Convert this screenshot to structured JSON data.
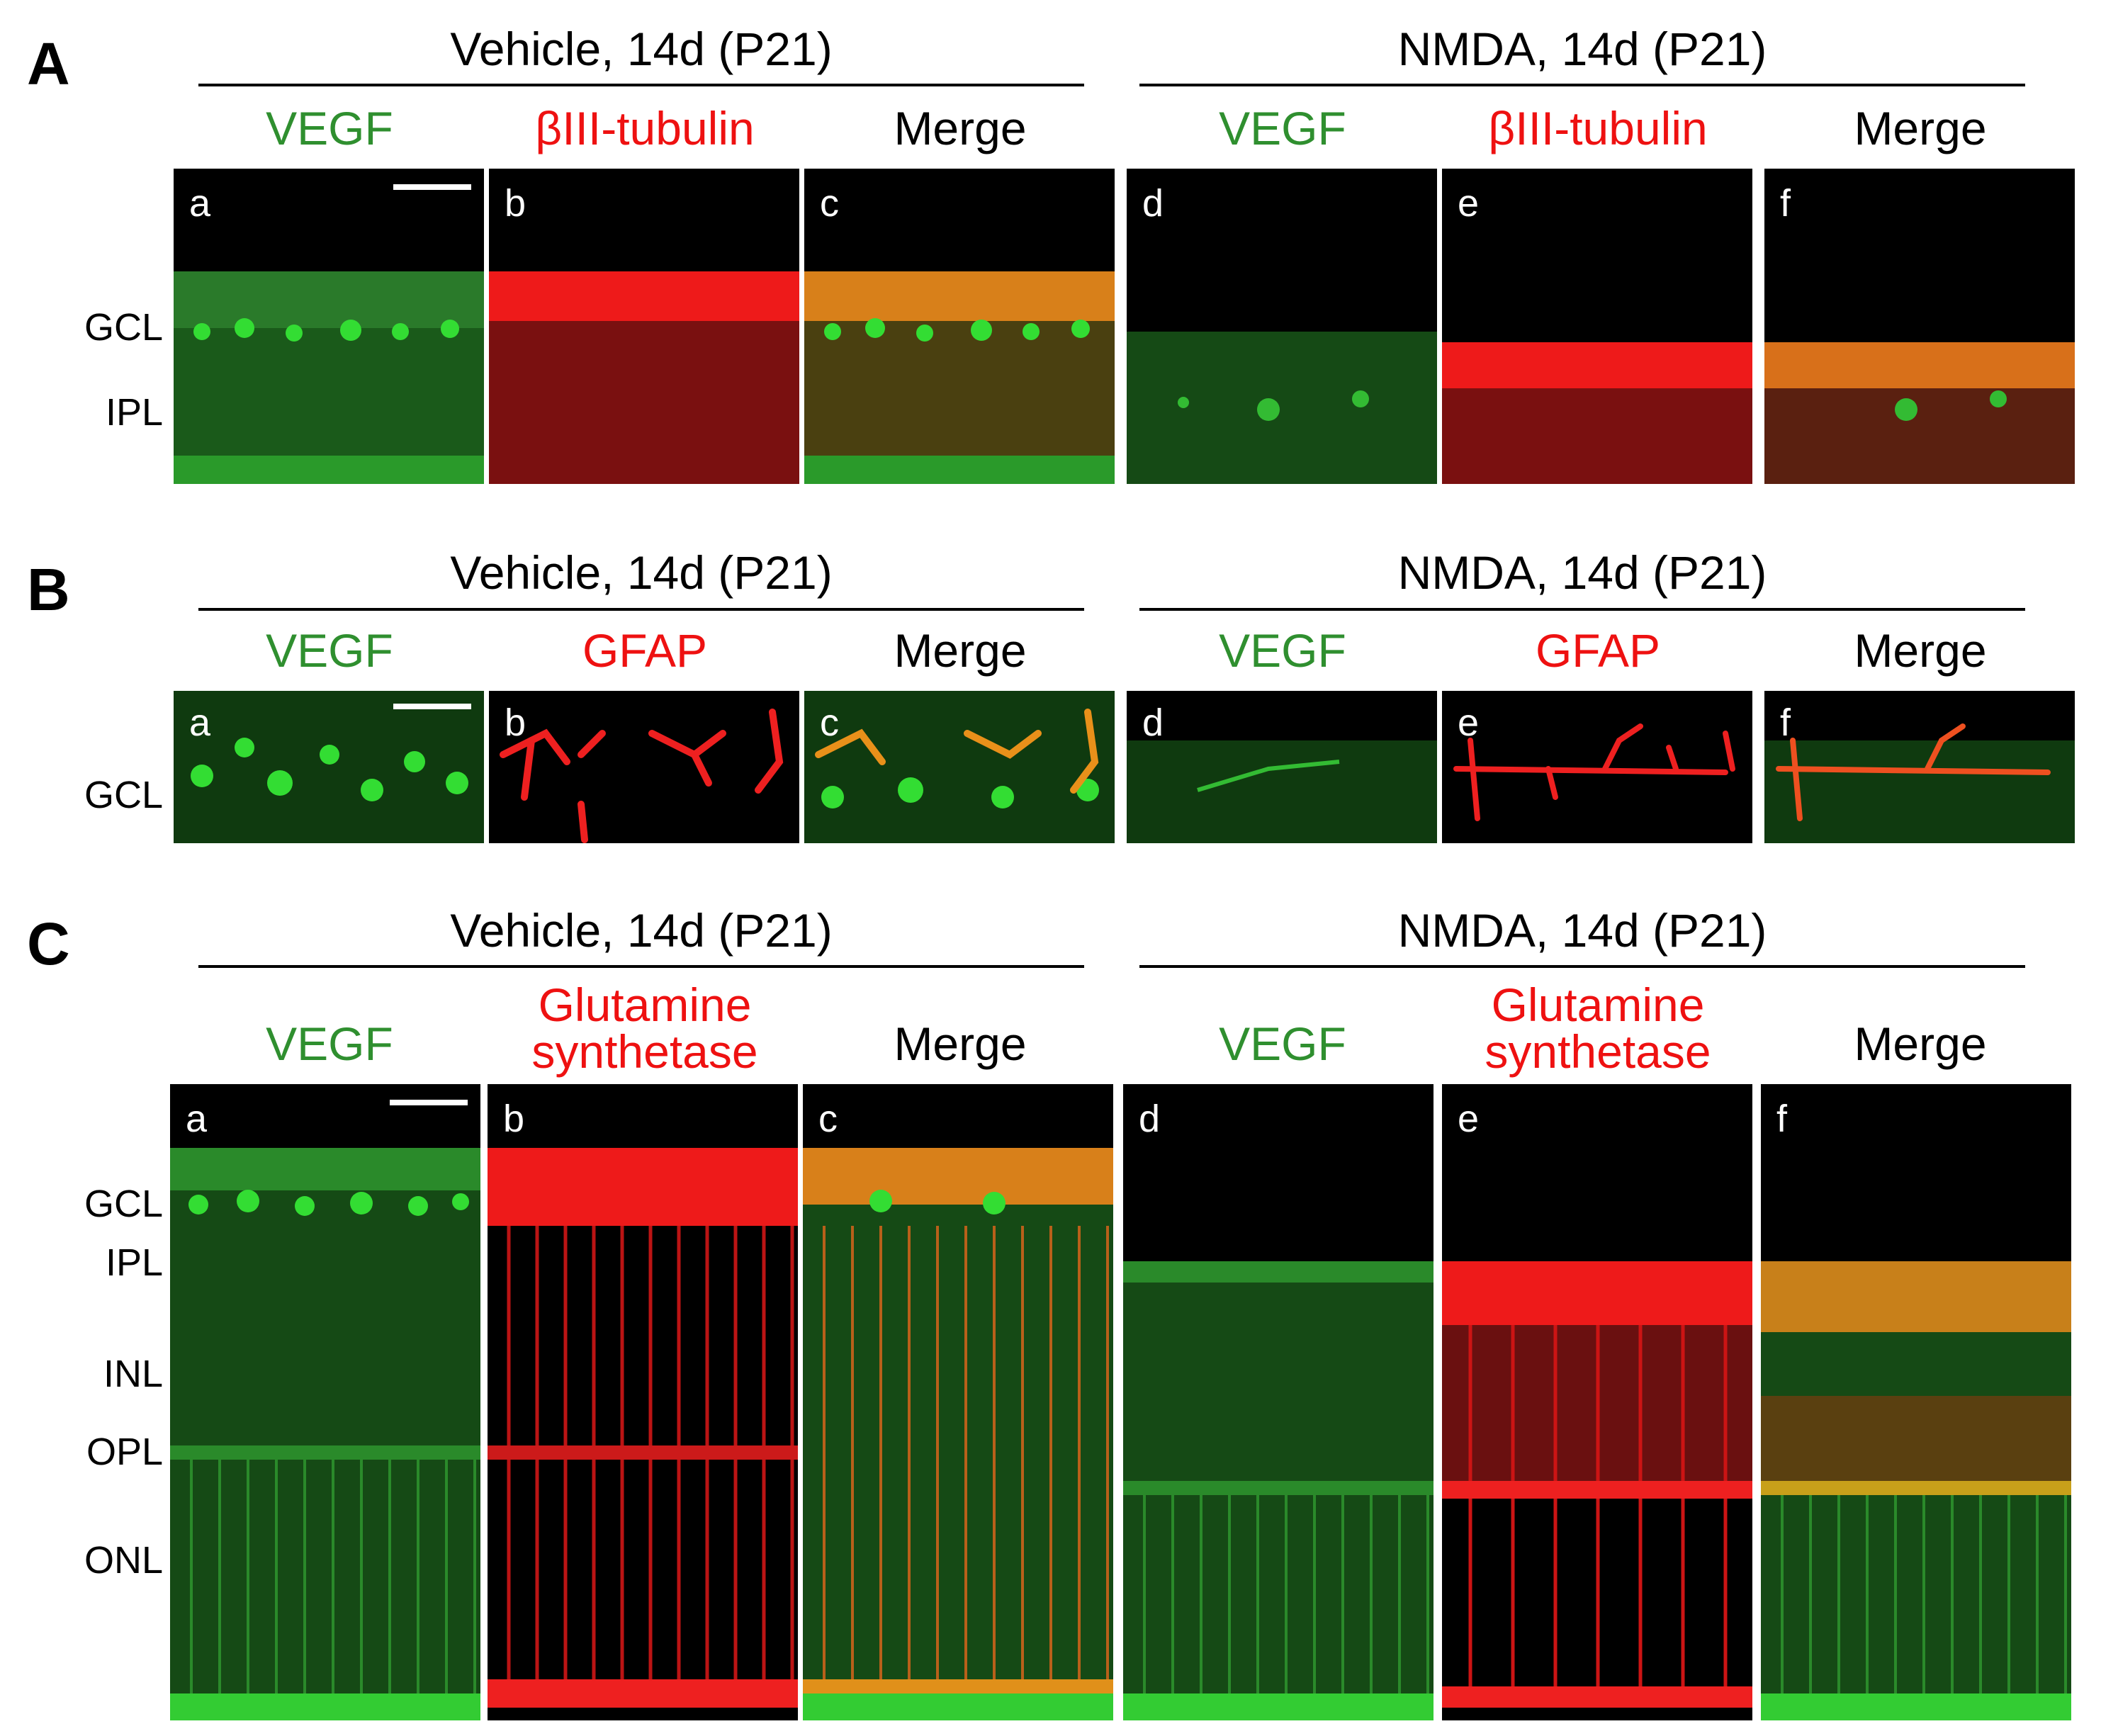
{
  "figure": {
    "panels": [
      {
        "id": "A",
        "groups": [
          "Vehicle, 14d (P21)",
          "NMDA, 14d (P21)"
        ],
        "channels": [
          {
            "label": "VEGF",
            "color": "#2f8f2f"
          },
          {
            "label": "βIII-tubulin",
            "color": "#ee1111"
          },
          {
            "label": "Merge",
            "color": "#000000"
          }
        ],
        "subpanels": [
          "a",
          "b",
          "c",
          "d",
          "e",
          "f"
        ],
        "layers": [
          "GCL",
          "IPL"
        ]
      },
      {
        "id": "B",
        "groups": [
          "Vehicle, 14d (P21)",
          "NMDA, 14d (P21)"
        ],
        "channels": [
          {
            "label": "VEGF",
            "color": "#2f8f2f"
          },
          {
            "label": "GFAP",
            "color": "#ee1111"
          },
          {
            "label": "Merge",
            "color": "#000000"
          }
        ],
        "subpanels": [
          "a",
          "b",
          "c",
          "d",
          "e",
          "f"
        ],
        "layers": [
          "GCL"
        ]
      },
      {
        "id": "C",
        "groups": [
          "Vehicle, 14d (P21)",
          "NMDA, 14d (P21)"
        ],
        "channels": [
          {
            "label": "VEGF",
            "color": "#2f8f2f"
          },
          {
            "label": "Glutamine synthetase",
            "line1": "Glutamine",
            "line2": "synthetase",
            "color": "#ee1111"
          },
          {
            "label": "Merge",
            "color": "#000000"
          }
        ],
        "subpanels": [
          "a",
          "b",
          "c",
          "d",
          "e",
          "f"
        ],
        "layers": [
          "GCL",
          "IPL",
          "INL",
          "OPL",
          "ONL"
        ]
      }
    ],
    "colors": {
      "vegf": "#22cc22",
      "marker": "#ff2020",
      "merge": "#e08a1a",
      "background": "#000000"
    }
  }
}
